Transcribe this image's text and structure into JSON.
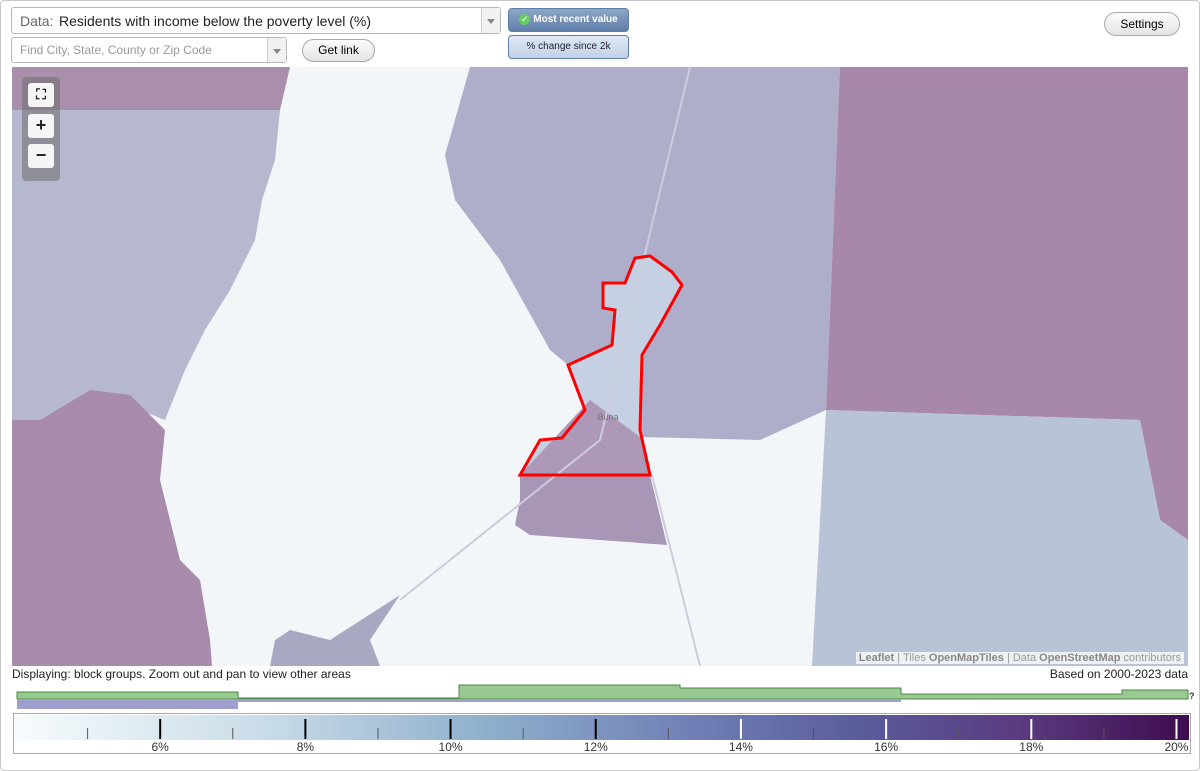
{
  "toolbar": {
    "data_prefix": "Data:",
    "data_value": "Residents with income below the poverty level (%)",
    "search_placeholder": "Find City, State, County or Zip Code",
    "get_link": "Get link",
    "mode_buttons": [
      "Most recent value",
      "% change since 2k"
    ],
    "settings": "Settings"
  },
  "map": {
    "zoom_in": "+",
    "zoom_out": "−",
    "place_label": "Buna",
    "attribution": {
      "leaflet": "Leaflet",
      "sep1": "|",
      "tiles": "Tiles",
      "tiles_source": "OpenMapTiles",
      "sep2": "| Data",
      "data": "",
      "data_source": "OpenStreetMap",
      "contributors": "contributors"
    }
  },
  "status": {
    "displaying": "Displaying: block groups. Zoom out and pan to view other areas",
    "based_on": "Based on 2000-2023 data",
    "help": "?"
  },
  "legend": {
    "range": [
      4,
      20.2
    ],
    "major_ticks": [
      {
        "value": 6,
        "label": "6%"
      },
      {
        "value": 8,
        "label": "8%"
      },
      {
        "value": 10,
        "label": "10%"
      },
      {
        "value": 12,
        "label": "12%"
      },
      {
        "value": 14,
        "label": "14%"
      },
      {
        "value": 16,
        "label": "16%"
      },
      {
        "value": 18,
        "label": "18%"
      },
      {
        "value": 20,
        "label": "20%"
      }
    ],
    "minor_ticks": [
      5,
      7,
      9,
      11,
      13,
      15,
      17,
      19
    ]
  }
}
